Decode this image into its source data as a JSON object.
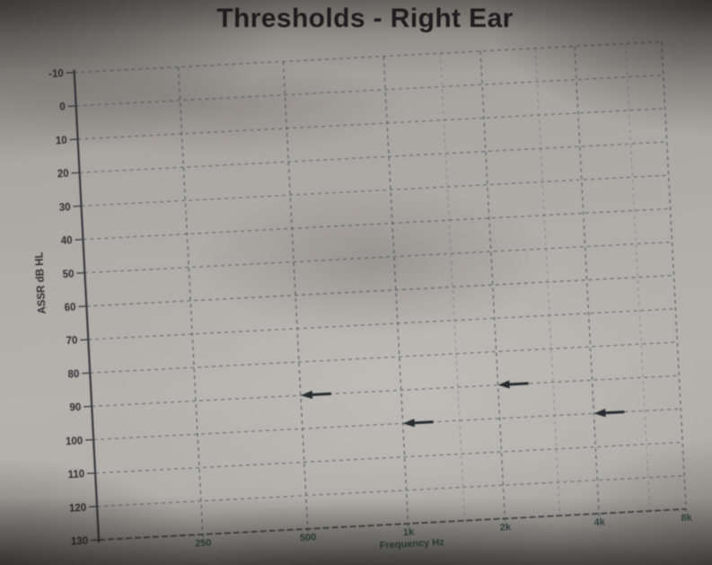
{
  "page_title": "Thresholds - Right Ear",
  "chart_data": {
    "type": "scatter",
    "title": "Thresholds - Right Ear",
    "xlabel": "Frequency Hz",
    "ylabel": "ASSR dB HL",
    "x_scale": "logarithmic",
    "xlim_hz": [
      125,
      8000
    ],
    "x_ticks": [
      {
        "hz": 250,
        "label": "250"
      },
      {
        "hz": 500,
        "label": "500"
      },
      {
        "hz": 1000,
        "label": "1k"
      },
      {
        "hz": 2000,
        "label": "2k"
      },
      {
        "hz": 4000,
        "label": "4k"
      },
      {
        "hz": 8000,
        "label": "8k"
      }
    ],
    "x_minor_gridlines_hz": [
      1500,
      3000,
      6000
    ],
    "y_ticks": [
      -10,
      0,
      10,
      20,
      30,
      40,
      50,
      60,
      70,
      80,
      90,
      100,
      110,
      120,
      130
    ],
    "ylim": [
      -10,
      130
    ],
    "y_axis_inverted": true,
    "grid_style": "dashed",
    "legend_position": "none",
    "points": [
      {
        "frequency_hz": 500,
        "level_db_hl": 90,
        "marker": "left-arrow"
      },
      {
        "frequency_hz": 1000,
        "level_db_hl": 100,
        "marker": "left-arrow"
      },
      {
        "frequency_hz": 2000,
        "level_db_hl": 90,
        "marker": "left-arrow"
      },
      {
        "frequency_hz": 4000,
        "level_db_hl": 100,
        "marker": "left-arrow"
      }
    ]
  },
  "colors": {
    "grid": "#51606b",
    "grid_minor": "#5d6b75",
    "axis": "#2e3137",
    "baseline": "#3a4046",
    "marker": "#1c2128",
    "title_text": "#1f1d21",
    "y_tick_text": "#26262a",
    "x_tick_text": "#2d4944",
    "paper": "#b0aca7"
  }
}
